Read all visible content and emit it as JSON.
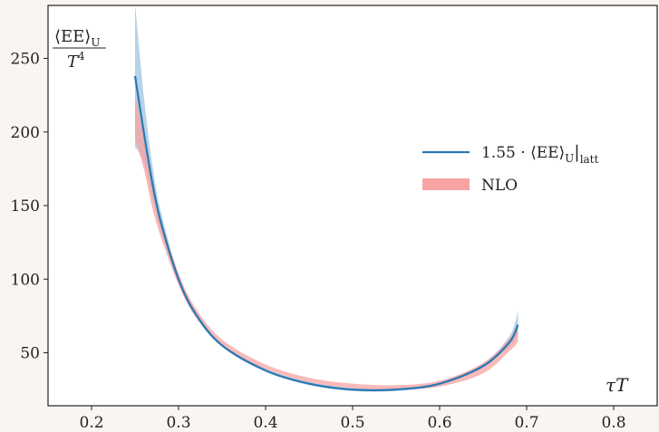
{
  "chart_data": {
    "type": "line",
    "xlabel": "τT",
    "ylabel_numerator": "⟨EE⟩",
    "ylabel_numerator_sub": "U",
    "ylabel_denominator": "T",
    "ylabel_denominator_sup": "4",
    "xlim": [
      0.15,
      0.85
    ],
    "ylim": [
      14,
      286
    ],
    "x_ticks": [
      0.2,
      0.3,
      0.4,
      0.5,
      0.6,
      0.7,
      0.8
    ],
    "x_tick_labels": [
      "0.2",
      "0.3",
      "0.4",
      "0.5",
      "0.6",
      "0.7",
      "0.8"
    ],
    "y_ticks": [
      50,
      100,
      150,
      200,
      250
    ],
    "y_tick_labels": [
      "50",
      "100",
      "150",
      "200",
      "250"
    ],
    "grid": false,
    "legend_position": "right-middle",
    "series": [
      {
        "name": "1.55 · ⟨EE⟩",
        "name_sub": "U",
        "name_suffix": "|",
        "name_suffix_sub": "latt",
        "kind": "line_with_band",
        "color": "#2a78b4",
        "band_color": "#a9cbe3",
        "x": [
          0.25,
          0.26,
          0.27,
          0.28,
          0.3,
          0.32,
          0.35,
          0.4,
          0.45,
          0.5,
          0.55,
          0.6,
          0.65,
          0.68,
          0.69
        ],
        "y": [
          238,
          200,
          165,
          138,
          100,
          76,
          55,
          38,
          29,
          25,
          25,
          29,
          41,
          57,
          69
        ],
        "lower": [
          190,
          180,
          155,
          132,
          97,
          74,
          54,
          37,
          28,
          24,
          24,
          28,
          40,
          54,
          62
        ],
        "upper": [
          287,
          225,
          177,
          145,
          103,
          78,
          56,
          39,
          30,
          26,
          26,
          30,
          43,
          61,
          78
        ]
      },
      {
        "name": "NLO",
        "kind": "band",
        "color": "#f7a3a3",
        "x": [
          0.25,
          0.26,
          0.27,
          0.28,
          0.3,
          0.32,
          0.35,
          0.4,
          0.45,
          0.5,
          0.55,
          0.6,
          0.65,
          0.68,
          0.69
        ],
        "lower": [
          195,
          175,
          148,
          128,
          96,
          74,
          55,
          39,
          30,
          26,
          25,
          27,
          36,
          51,
          57
        ],
        "upper": [
          226,
          198,
          165,
          140,
          104,
          80,
          59,
          42,
          33,
          29,
          28,
          31,
          43,
          60,
          69
        ]
      }
    ]
  }
}
